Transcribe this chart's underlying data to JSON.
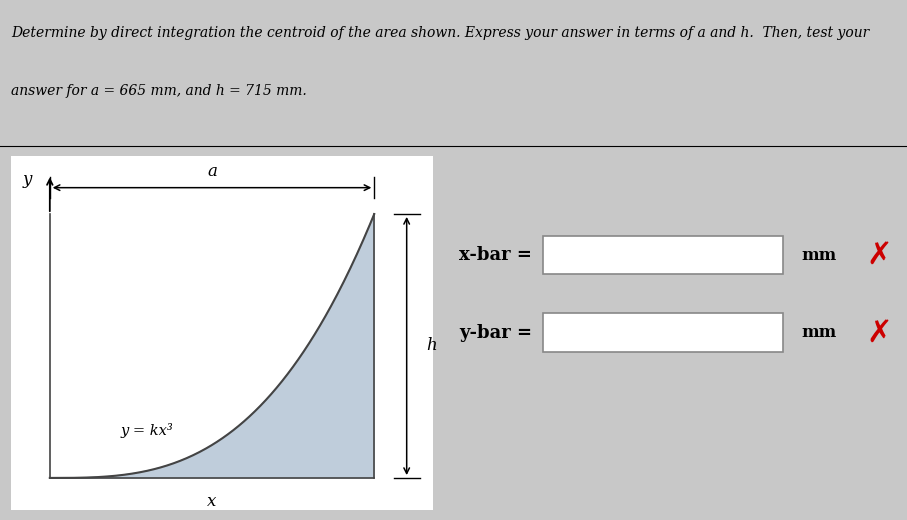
{
  "title_line1": "Determine by direct integration the centroid of the area shown. Express your answer in terms of a and h.  Then, test your",
  "title_line2": "answer for a = 665 mm, and h = 715 mm.",
  "title_fontsize": 10.0,
  "curve_fill": "#b8c8d8",
  "curve_edge": "#444444",
  "diagram_bg": "#ffffff",
  "panel_bg": "#c8c8c8",
  "top_bg": "#e0e0e0",
  "xbar_label": "x-bar = ",
  "ybar_label": "y-bar = ",
  "unit_label": "mm",
  "cross_color": "#cc0000",
  "label_a": "a",
  "label_h": "h",
  "label_y": "y",
  "label_x": "x",
  "label_eq": "y = kx³"
}
